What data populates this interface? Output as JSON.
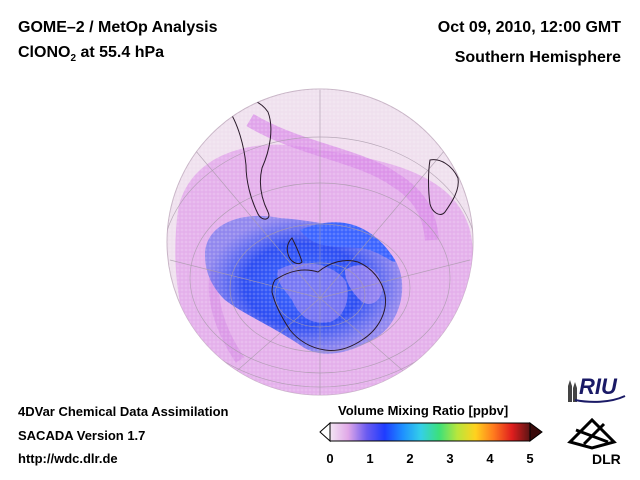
{
  "header": {
    "title": "GOME–2 / MetOp Analysis",
    "species_main": "ClONO",
    "species_sub": "2",
    "species_level": " at 55.4 hPa",
    "datetime": "Oct 09, 2010, 12:00 GMT",
    "region": "Southern Hemisphere"
  },
  "footer": {
    "method": "4DVar Chemical Data Assimilation",
    "version": "SACADA Version 1.7",
    "url": "http://wdc.dlr.de"
  },
  "colorbar": {
    "title": "Volume Mixing Ratio [ppbv]",
    "ticks": [
      "0",
      "1",
      "2",
      "3",
      "4",
      "5"
    ],
    "range": [
      0,
      5
    ],
    "colors": [
      "#f4e6f4",
      "#e0a8e8",
      "#6c5cf0",
      "#1f3cff",
      "#1e90ff",
      "#34d0e8",
      "#3ce07a",
      "#b8e63c",
      "#ffd21e",
      "#ff7a1e",
      "#e01e1e",
      "#5a1414"
    ]
  },
  "map": {
    "projection": "orthographic",
    "pole": "South Pole",
    "colors": {
      "background": "#f3e7f2",
      "ocean_tint": "#efd5ee",
      "low": "#2f57f5",
      "mid": "#d9a3e8",
      "coast": "#2a1a2a",
      "grid": "#a99aaa"
    }
  },
  "logos": {
    "riu": "RIU",
    "dlr": "DLR"
  }
}
